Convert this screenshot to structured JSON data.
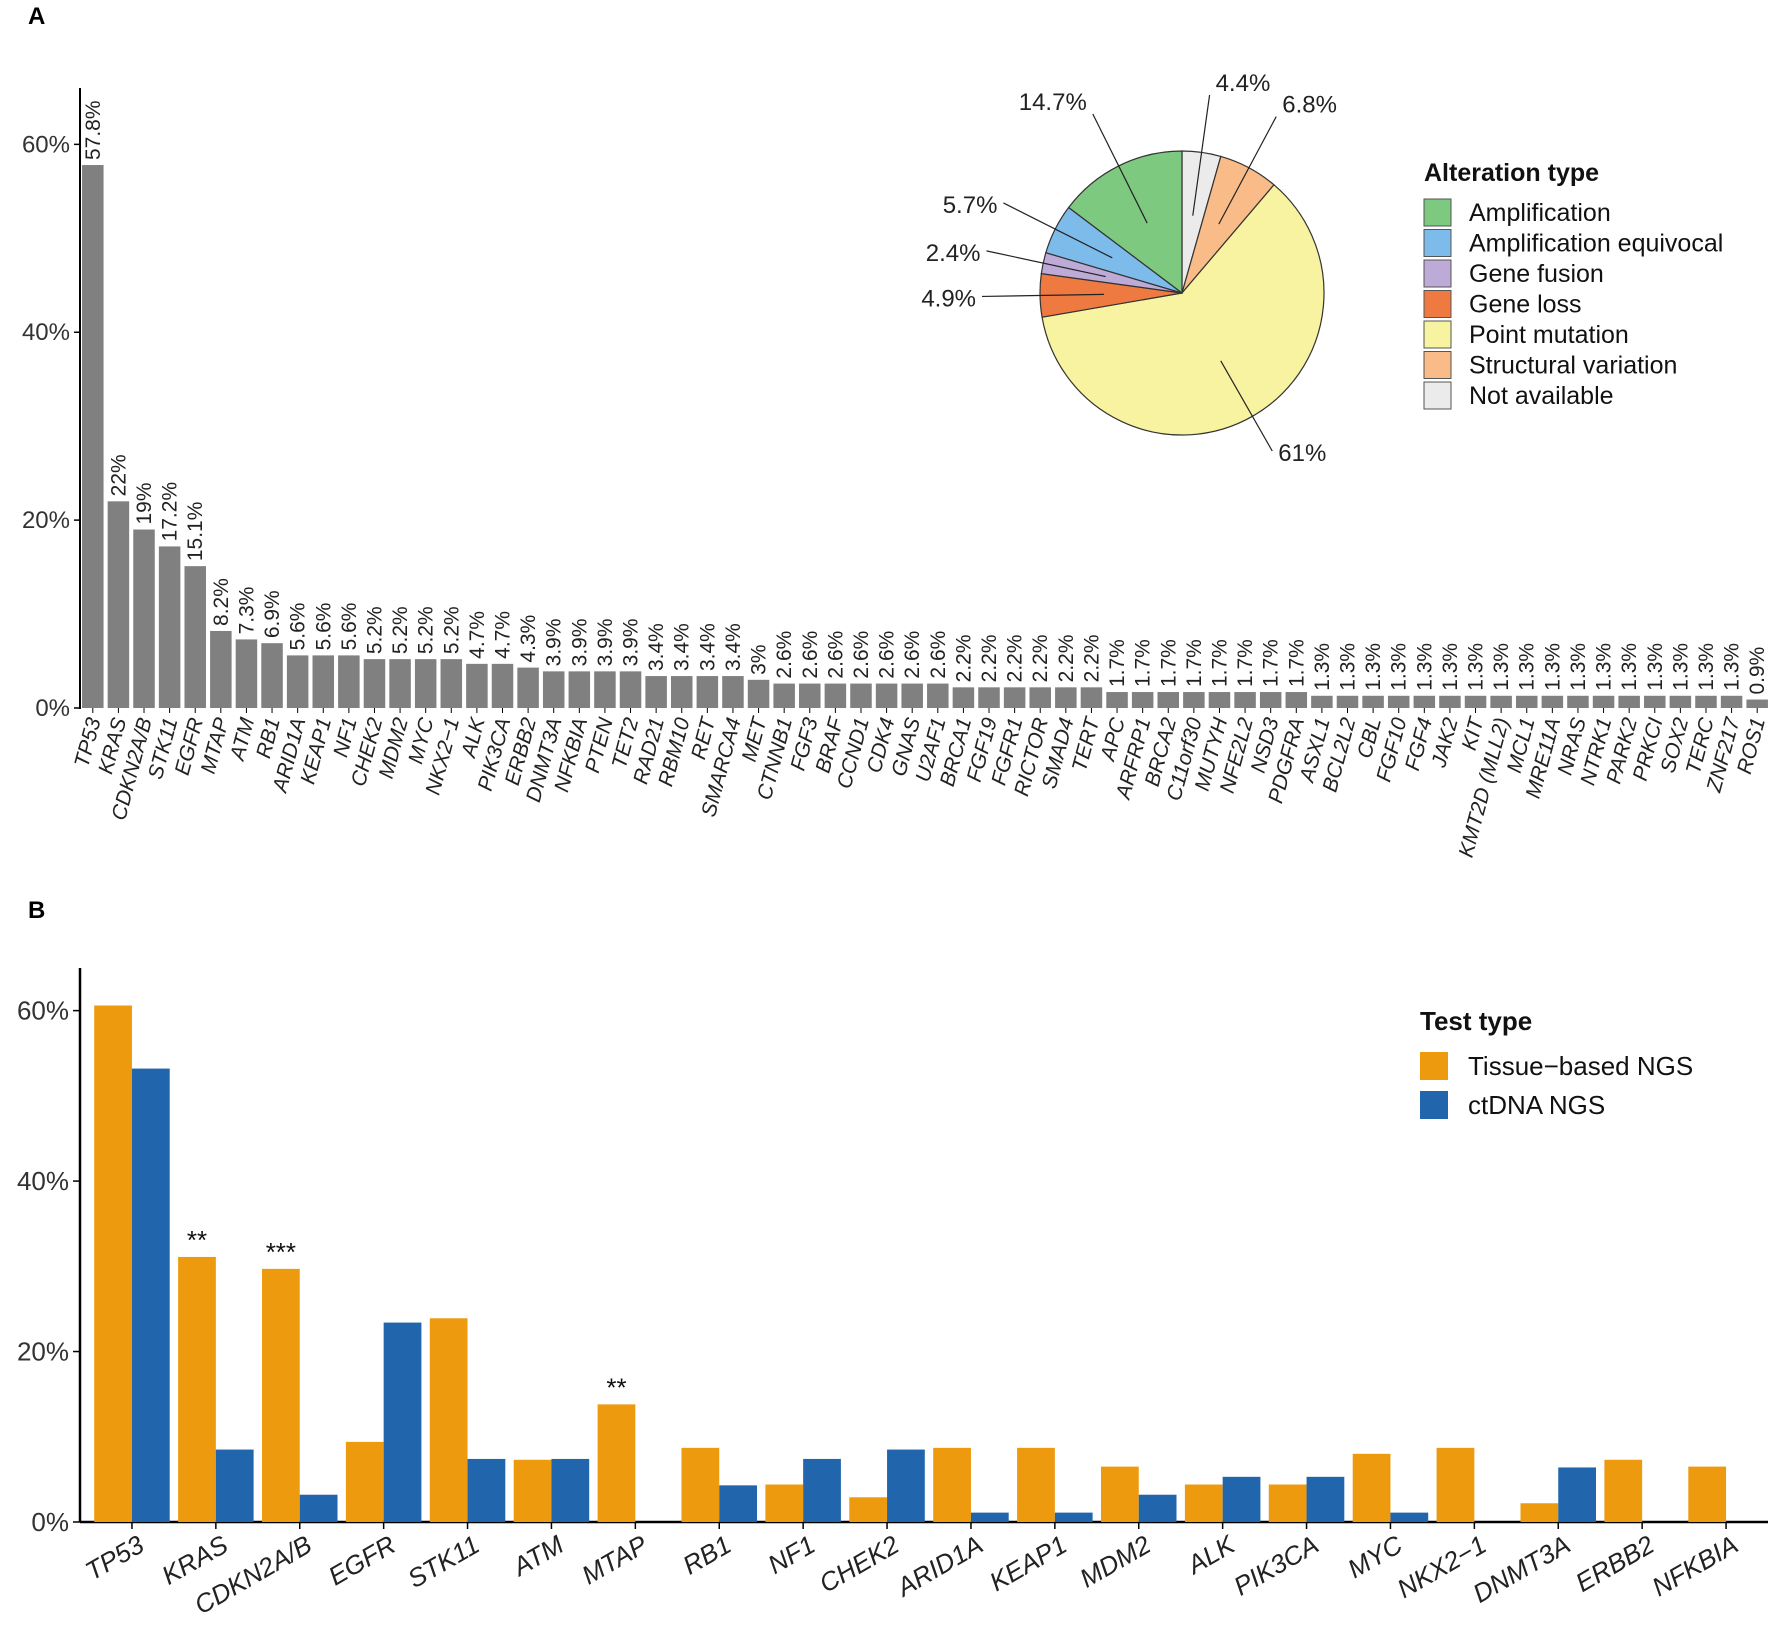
{
  "panels": {
    "a_label": "A",
    "b_label": "B"
  },
  "colors": {
    "bar_a": "#808080",
    "tissue": "#EE9A0F",
    "ctdna": "#2166AC",
    "axis": "#000000"
  },
  "chart_data": [
    {
      "type": "bar",
      "panel": "A",
      "ylabel": "",
      "ylim": [
        0,
        0.66
      ],
      "yticks": [
        0,
        0.2,
        0.4,
        0.6
      ],
      "ytick_labels": [
        "0%",
        "20%",
        "40%",
        "60%"
      ],
      "categories": [
        "TP53",
        "KRAS",
        "CDKN2A/B",
        "STK11",
        "EGFR",
        "MTAP",
        "ATM",
        "RB1",
        "ARID1A",
        "KEAP1",
        "NF1",
        "CHEK2",
        "MDM2",
        "MYC",
        "NKX2−1",
        "ALK",
        "PIK3CA",
        "ERBB2",
        "DNMT3A",
        "NFKBIA",
        "PTEN",
        "TET2",
        "RAD21",
        "RBM10",
        "RET",
        "SMARCA4",
        "MET",
        "CTNNB1",
        "FGF3",
        "BRAF",
        "CCND1",
        "CDK4",
        "GNAS",
        "U2AF1",
        "BRCA1",
        "FGF19",
        "FGFR1",
        "RICTOR",
        "SMAD4",
        "TERT",
        "APC",
        "ARFRP1",
        "BRCA2",
        "C11orf30",
        "MUTYH",
        "NFE2L2",
        "NSD3",
        "PDGFRA",
        "ASXL1",
        "BCL2L2",
        "CBL",
        "FGF10",
        "FGF4",
        "JAK2",
        "KIT",
        "KMT2D (MLL2)",
        "MCL1",
        "MRE11A",
        "NRAS",
        "NTRK1",
        "PARK2",
        "PRKCI",
        "SOX2",
        "TERC",
        "ZNF217",
        "ROS1"
      ],
      "values": [
        0.578,
        0.22,
        0.19,
        0.172,
        0.151,
        0.082,
        0.073,
        0.069,
        0.056,
        0.056,
        0.056,
        0.052,
        0.052,
        0.052,
        0.052,
        0.047,
        0.047,
        0.043,
        0.039,
        0.039,
        0.039,
        0.039,
        0.034,
        0.034,
        0.034,
        0.034,
        0.03,
        0.026,
        0.026,
        0.026,
        0.026,
        0.026,
        0.026,
        0.026,
        0.022,
        0.022,
        0.022,
        0.022,
        0.022,
        0.022,
        0.017,
        0.017,
        0.017,
        0.017,
        0.017,
        0.017,
        0.017,
        0.017,
        0.013,
        0.013,
        0.013,
        0.013,
        0.013,
        0.013,
        0.013,
        0.013,
        0.013,
        0.013,
        0.013,
        0.013,
        0.013,
        0.013,
        0.013,
        0.013,
        0.013,
        0.009
      ],
      "labels": [
        "57.8%",
        "22%",
        "19%",
        "17.2%",
        "15.1%",
        "8.2%",
        "7.3%",
        "6.9%",
        "5.6%",
        "5.6%",
        "5.6%",
        "5.2%",
        "5.2%",
        "5.2%",
        "5.2%",
        "4.7%",
        "4.7%",
        "4.3%",
        "3.9%",
        "3.9%",
        "3.9%",
        "3.9%",
        "3.4%",
        "3.4%",
        "3.4%",
        "3.4%",
        "3%",
        "2.6%",
        "2.6%",
        "2.6%",
        "2.6%",
        "2.6%",
        "2.6%",
        "2.6%",
        "2.2%",
        "2.2%",
        "2.2%",
        "2.2%",
        "2.2%",
        "2.2%",
        "1.7%",
        "1.7%",
        "1.7%",
        "1.7%",
        "1.7%",
        "1.7%",
        "1.7%",
        "1.7%",
        "1.3%",
        "1.3%",
        "1.3%",
        "1.3%",
        "1.3%",
        "1.3%",
        "1.3%",
        "1.3%",
        "1.3%",
        "1.3%",
        "1.3%",
        "1.3%",
        "1.3%",
        "1.3%",
        "1.3%",
        "1.3%",
        "1.3%",
        "0.9%"
      ]
    },
    {
      "type": "pie",
      "panel": "A-inset",
      "legend_title": "Alteration type",
      "legend_position": "right",
      "slices": [
        {
          "name": "Not available",
          "value": 4.4,
          "label": "4.4%",
          "color": "#EBEBEB"
        },
        {
          "name": "Structural variation",
          "value": 6.8,
          "label": "6.8%",
          "color": "#F9BB87"
        },
        {
          "name": "Point mutation",
          "value": 61.0,
          "label": "61%",
          "color": "#F8F3A1"
        },
        {
          "name": "Gene loss",
          "value": 4.9,
          "label": "4.9%",
          "color": "#EE7A42"
        },
        {
          "name": "Gene fusion",
          "value": 2.4,
          "label": "2.4%",
          "color": "#BEAAD6"
        },
        {
          "name": "Amplification equivocal",
          "value": 5.7,
          "label": "5.7%",
          "color": "#7DBBEB"
        },
        {
          "name": "Amplification",
          "value": 14.7,
          "label": "14.7%",
          "color": "#7DC97F"
        }
      ],
      "legend_order": [
        "Amplification",
        "Amplification equivocal",
        "Gene fusion",
        "Gene loss",
        "Point mutation",
        "Structural variation",
        "Not available"
      ]
    },
    {
      "type": "bar",
      "panel": "B",
      "ylim": [
        0,
        0.65
      ],
      "yticks": [
        0,
        0.2,
        0.4,
        0.6
      ],
      "ytick_labels": [
        "0%",
        "20%",
        "40%",
        "60%"
      ],
      "legend_title": "Test type",
      "legend_position": "top-right",
      "categories": [
        "TP53",
        "KRAS",
        "CDKN2A/B",
        "EGFR",
        "STK11",
        "ATM",
        "MTAP",
        "RB1",
        "NF1",
        "CHEK2",
        "ARID1A",
        "KEAP1",
        "MDM2",
        "ALK",
        "PIK3CA",
        "MYC",
        "NKX2−1",
        "DNMT3A",
        "ERBB2",
        "NFKBIA"
      ],
      "series": [
        {
          "name": "Tissue−based NGS",
          "color": "#EE9A0F",
          "values": [
            0.606,
            0.311,
            0.297,
            0.094,
            0.239,
            0.073,
            0.138,
            0.087,
            0.044,
            0.029,
            0.087,
            0.087,
            0.065,
            0.044,
            0.044,
            0.08,
            0.087,
            0.022,
            0.073,
            0.065
          ]
        },
        {
          "name": "ctDNA NGS",
          "color": "#2166AC",
          "values": [
            0.532,
            0.085,
            0.032,
            0.234,
            0.074,
            0.074,
            0.0,
            0.043,
            0.074,
            0.085,
            0.011,
            0.011,
            0.032,
            0.053,
            0.053,
            0.011,
            0.0,
            0.064,
            0.0,
            0.0
          ]
        }
      ],
      "annotations": [
        {
          "category": "KRAS",
          "text": "**"
        },
        {
          "category": "CDKN2A/B",
          "text": "***"
        },
        {
          "category": "MTAP",
          "text": "**"
        }
      ]
    }
  ]
}
